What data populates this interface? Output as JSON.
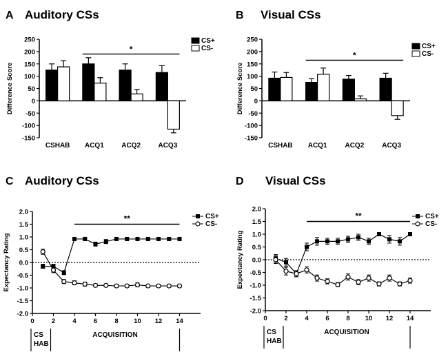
{
  "chart_data": [
    {
      "type": "bar",
      "panel_letter": "A",
      "title": "Auditory CSs",
      "ylabel": "Difference Score",
      "ylim": [
        -150,
        250
      ],
      "yticks": [
        -150,
        -100,
        -50,
        0,
        50,
        100,
        150,
        200,
        250
      ],
      "categories": [
        "CSHAB",
        "ACQ1",
        "ACQ2",
        "ACQ3"
      ],
      "series": [
        {
          "name": "CS+",
          "values": [
            125,
            150,
            125,
            115
          ],
          "errors": [
            25,
            25,
            25,
            28
          ]
        },
        {
          "name": "CS-",
          "values": [
            138,
            72,
            28,
            -115
          ],
          "errors": [
            25,
            22,
            18,
            15
          ]
        }
      ],
      "significance": {
        "label": "*",
        "from": 1,
        "to": 3,
        "y": 190
      },
      "legend_position": "top-right"
    },
    {
      "type": "bar",
      "panel_letter": "B",
      "title": "Visual CSs",
      "ylabel": "Difference Score",
      "ylim": [
        -150,
        250
      ],
      "yticks": [
        -150,
        -100,
        -50,
        0,
        50,
        100,
        150,
        200,
        250
      ],
      "categories": [
        "CSHAB",
        "ACQ1",
        "ACQ2",
        "ACQ3"
      ],
      "series": [
        {
          "name": "CS+",
          "values": [
            92,
            75,
            88,
            92
          ],
          "errors": [
            25,
            15,
            15,
            20
          ]
        },
        {
          "name": "CS-",
          "values": [
            95,
            108,
            8,
            -60
          ],
          "errors": [
            20,
            25,
            12,
            15
          ]
        }
      ],
      "significance": {
        "label": "*",
        "from": 1,
        "to": 3,
        "y": 165
      },
      "legend_position": "top-right"
    },
    {
      "type": "line",
      "panel_letter": "C",
      "title": "Auditory CSs",
      "ylabel": "Expectancy Rating",
      "ylim": [
        -2.0,
        2.0
      ],
      "yticks": [
        -2.0,
        -1.5,
        -1.0,
        -0.5,
        0.0,
        0.5,
        1.0,
        1.5,
        2.0
      ],
      "ytick_labels": [
        "-2.0",
        "-1.5",
        "-1.0",
        "-0.5",
        "0.0",
        "0.5",
        "1.0",
        "1.5",
        "2.0"
      ],
      "xlim": [
        0,
        16
      ],
      "xticks": [
        0,
        2,
        4,
        6,
        8,
        10,
        12,
        14
      ],
      "x": [
        1,
        2,
        3,
        4,
        5,
        6,
        7,
        8,
        9,
        10,
        11,
        12,
        13,
        14
      ],
      "series": [
        {
          "name": "CS+",
          "marker": "filled-square",
          "values": [
            -0.15,
            -0.15,
            -0.4,
            0.92,
            0.92,
            0.72,
            0.82,
            0.92,
            0.92,
            0.92,
            0.92,
            0.92,
            0.92,
            0.92
          ],
          "errors": [
            0.08,
            0.08,
            0.08,
            0.06,
            0.06,
            0.08,
            0.08,
            0.06,
            0.06,
            0.06,
            0.06,
            0.06,
            0.06,
            0.06
          ]
        },
        {
          "name": "CS-",
          "marker": "open-circle",
          "values": [
            0.42,
            -0.3,
            -0.75,
            -0.8,
            -0.85,
            -0.9,
            -0.9,
            -0.92,
            -0.92,
            -0.88,
            -0.92,
            -0.92,
            -0.92,
            -0.92
          ],
          "errors": [
            0.1,
            0.1,
            0.08,
            0.08,
            0.08,
            0.06,
            0.06,
            0.06,
            0.06,
            0.08,
            0.06,
            0.06,
            0.06,
            0.06
          ]
        }
      ],
      "significance": {
        "label": "**",
        "from": 4,
        "to": 14,
        "y": 1.5
      },
      "legend_position": "top-right",
      "phase_labels": {
        "cs": "CS",
        "hab": "HAB",
        "acquisition": "ACQUISITION"
      }
    },
    {
      "type": "line",
      "panel_letter": "D",
      "title": "Visual CSs",
      "ylabel": "Expectancy Rating",
      "ylim": [
        -2.0,
        2.0
      ],
      "yticks": [
        -2.0,
        -1.5,
        -1.0,
        -0.5,
        0.0,
        0.5,
        1.0,
        1.5,
        2.0
      ],
      "ytick_labels": [
        "-2.0",
        "-1.5",
        "-1.0",
        "-0.5",
        "0.0",
        "0.5",
        "1.0",
        "1.5",
        "2.0"
      ],
      "xlim": [
        0,
        16
      ],
      "xticks": [
        0,
        2,
        4,
        6,
        8,
        10,
        12,
        14
      ],
      "x": [
        1,
        2,
        3,
        4,
        5,
        6,
        7,
        8,
        9,
        10,
        11,
        12,
        13,
        14
      ],
      "series": [
        {
          "name": "CS+",
          "marker": "filled-square",
          "values": [
            0.05,
            -0.1,
            -0.55,
            0.5,
            0.72,
            0.72,
            0.72,
            0.8,
            0.88,
            0.72,
            1.0,
            0.8,
            0.72,
            1.0
          ],
          "errors": [
            0.15,
            0.15,
            0.12,
            0.15,
            0.15,
            0.12,
            0.12,
            0.12,
            0.12,
            0.12,
            0.05,
            0.15,
            0.15,
            0.05
          ]
        },
        {
          "name": "CS-",
          "marker": "open-circle",
          "values": [
            0.0,
            -0.45,
            -0.55,
            -0.4,
            -0.72,
            -0.85,
            -0.98,
            -0.68,
            -0.88,
            -0.72,
            -0.95,
            -0.72,
            -0.95,
            -0.82
          ],
          "errors": [
            0.15,
            0.15,
            0.12,
            0.12,
            0.12,
            0.1,
            0.08,
            0.12,
            0.1,
            0.12,
            0.08,
            0.12,
            0.08,
            0.1
          ]
        }
      ],
      "significance": {
        "label": "**",
        "from": 4,
        "to": 14,
        "y": 1.5
      },
      "legend_position": "top-right",
      "phase_labels": {
        "cs": "CS",
        "hab": "HAB",
        "acquisition": "ACQUISITION"
      }
    }
  ]
}
